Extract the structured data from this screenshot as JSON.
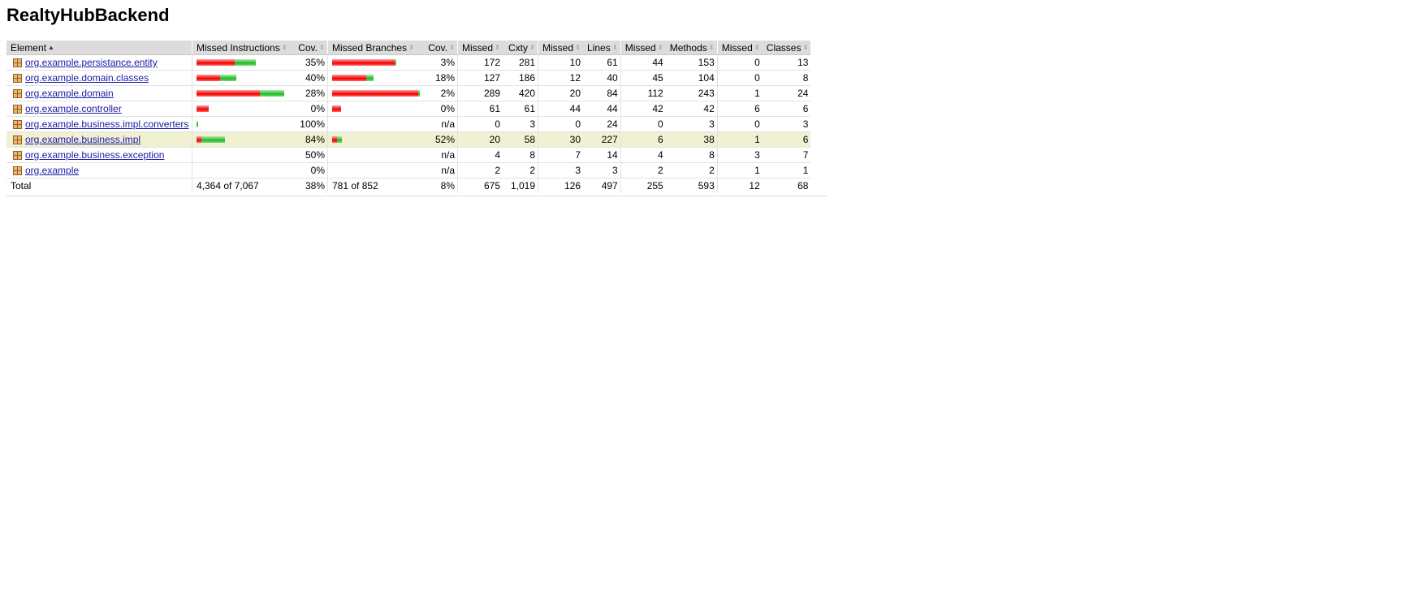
{
  "title": "RealtyHubBackend",
  "columns": [
    "Element",
    "Missed Instructions",
    "Cov.",
    "Missed Branches",
    "Cov.",
    "Missed",
    "Cxty",
    "Missed",
    "Lines",
    "Missed",
    "Methods",
    "Missed",
    "Classes"
  ],
  "rows": [
    {
      "name": "org.example.persistance.entity",
      "instr_missed_frac": 0.65,
      "instr_total_frac": 0.68,
      "instr_cov": "35%",
      "br_missed_frac": 0.97,
      "br_total_frac": 0.73,
      "br_cov": "3%",
      "cxty_missed": "172",
      "cxty": "281",
      "lines_missed": "10",
      "lines": "61",
      "methods_missed": "44",
      "methods": "153",
      "classes_missed": "0",
      "classes": "13",
      "highlight": false
    },
    {
      "name": "org.example.domain.classes",
      "instr_missed_frac": 0.6,
      "instr_total_frac": 0.45,
      "instr_cov": "40%",
      "br_missed_frac": 0.82,
      "br_total_frac": 0.47,
      "br_cov": "18%",
      "cxty_missed": "127",
      "cxty": "186",
      "lines_missed": "12",
      "lines": "40",
      "methods_missed": "45",
      "methods": "104",
      "classes_missed": "0",
      "classes": "8",
      "highlight": false
    },
    {
      "name": "org.example.domain",
      "instr_missed_frac": 0.72,
      "instr_total_frac": 1.0,
      "instr_cov": "28%",
      "br_missed_frac": 0.98,
      "br_total_frac": 1.0,
      "br_cov": "2%",
      "cxty_missed": "289",
      "cxty": "420",
      "lines_missed": "20",
      "lines": "84",
      "methods_missed": "112",
      "methods": "243",
      "classes_missed": "1",
      "classes": "24",
      "highlight": false
    },
    {
      "name": "org.example.controller",
      "instr_missed_frac": 1.0,
      "instr_total_frac": 0.14,
      "instr_cov": "0%",
      "br_missed_frac": 1.0,
      "br_total_frac": 0.1,
      "br_cov": "0%",
      "cxty_missed": "61",
      "cxty": "61",
      "lines_missed": "44",
      "lines": "44",
      "methods_missed": "42",
      "methods": "42",
      "classes_missed": "6",
      "classes": "6",
      "highlight": false
    },
    {
      "name": "org.example.business.impl.converters",
      "instr_missed_frac": 0.0,
      "instr_total_frac": 0.02,
      "instr_cov": "100%",
      "br_missed_frac": 0,
      "br_total_frac": 0,
      "br_cov": "n/a",
      "cxty_missed": "0",
      "cxty": "3",
      "lines_missed": "0",
      "lines": "24",
      "methods_missed": "0",
      "methods": "3",
      "classes_missed": "0",
      "classes": "3",
      "highlight": false
    },
    {
      "name": "org.example.business.impl",
      "instr_missed_frac": 0.16,
      "instr_total_frac": 0.32,
      "instr_cov": "84%",
      "br_missed_frac": 0.48,
      "br_total_frac": 0.11,
      "br_cov": "52%",
      "cxty_missed": "20",
      "cxty": "58",
      "lines_missed": "30",
      "lines": "227",
      "methods_missed": "6",
      "methods": "38",
      "classes_missed": "1",
      "classes": "6",
      "highlight": true
    },
    {
      "name": "org.example.business.exception",
      "instr_missed_frac": 0.5,
      "instr_total_frac": 0,
      "instr_cov": "50%",
      "br_missed_frac": 0,
      "br_total_frac": 0,
      "br_cov": "n/a",
      "cxty_missed": "4",
      "cxty": "8",
      "lines_missed": "7",
      "lines": "14",
      "methods_missed": "4",
      "methods": "8",
      "classes_missed": "3",
      "classes": "7",
      "highlight": false
    },
    {
      "name": "org.example",
      "instr_missed_frac": 1.0,
      "instr_total_frac": 0,
      "instr_cov": "0%",
      "br_missed_frac": 0,
      "br_total_frac": 0,
      "br_cov": "n/a",
      "cxty_missed": "2",
      "cxty": "2",
      "lines_missed": "3",
      "lines": "3",
      "methods_missed": "2",
      "methods": "2",
      "classes_missed": "1",
      "classes": "1",
      "highlight": false
    }
  ],
  "total": {
    "label": "Total",
    "instr": "4,364 of 7,067",
    "instr_cov": "38%",
    "br": "781 of 852",
    "br_cov": "8%",
    "cxty_missed": "675",
    "cxty": "1,019",
    "lines_missed": "126",
    "lines": "497",
    "methods_missed": "255",
    "methods": "593",
    "classes_missed": "12",
    "classes": "68"
  },
  "colors": {
    "missed": "#e00000",
    "covered": "#28b428",
    "link": "#1a1aa6",
    "highlight": "#f0f0d2",
    "header": "#dcdcdc"
  },
  "icons": {
    "package": "package-icon",
    "sort": "sort-arrows-icon",
    "sort_active": "sort-up-icon"
  }
}
